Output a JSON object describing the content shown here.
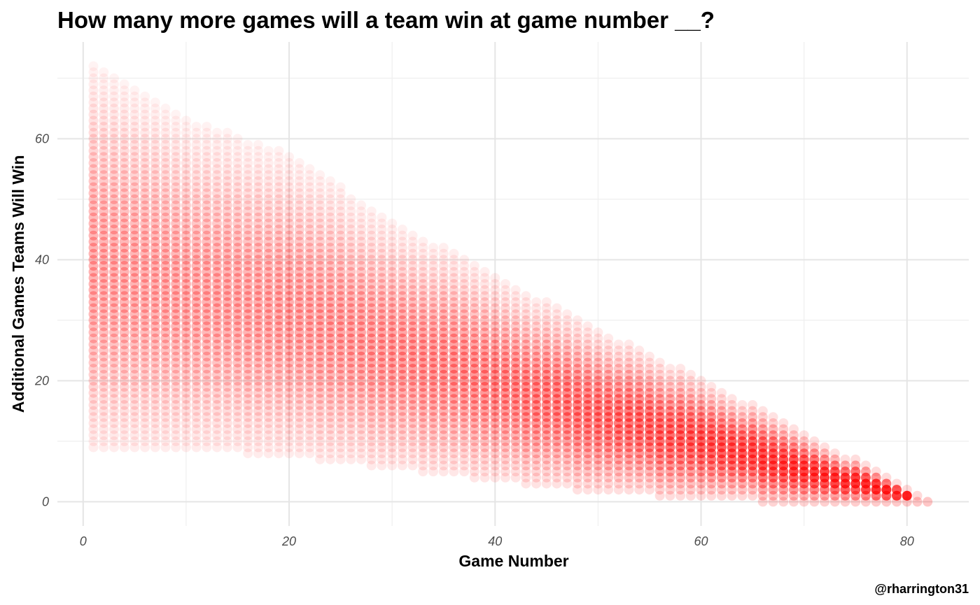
{
  "chart_data": {
    "type": "scatter",
    "title": "How many more games will a team win at game number __?",
    "xlabel": "Game Number",
    "ylabel": "Additional Games Teams Will Win",
    "caption": "@rharrington31",
    "xlim": [
      -2.5,
      86
    ],
    "ylim": [
      -4,
      76
    ],
    "x_ticks": [
      0,
      20,
      40,
      60,
      80
    ],
    "y_ticks": [
      0,
      20,
      40,
      60
    ],
    "x_tick_labels": [
      "0",
      "20",
      "40",
      "60",
      "80"
    ],
    "y_tick_labels": [
      "0",
      "20",
      "40",
      "60"
    ],
    "point_color": "#ff0000",
    "grid": true,
    "legend": "none",
    "point_alpha_description": "low alpha, overlapping points",
    "series": [
      {
        "name": "additional_wins_by_game",
        "x_range": [
          1,
          82
        ],
        "observed_range_by_game": [
          {
            "game": 1,
            "min": 9,
            "max": 72
          },
          {
            "game": 10,
            "min": 9,
            "max": 63
          },
          {
            "game": 20,
            "min": 8,
            "max": 57
          },
          {
            "game": 30,
            "min": 6,
            "max": 46
          },
          {
            "game": 40,
            "min": 4,
            "max": 37
          },
          {
            "game": 50,
            "min": 2,
            "max": 28
          },
          {
            "game": 60,
            "min": 1,
            "max": 20
          },
          {
            "game": 70,
            "min": 0,
            "max": 11
          },
          {
            "game": 80,
            "min": 0,
            "max": 2
          },
          {
            "game": 82,
            "min": 0,
            "max": 0
          }
        ]
      }
    ]
  }
}
